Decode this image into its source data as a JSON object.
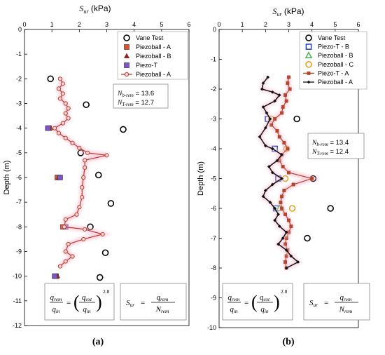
{
  "panels": [
    {
      "panel_label": "(a)",
      "chart_data": {
        "type": "scatter",
        "x_axis_label_main": "S",
        "x_axis_label_sub": "ur",
        "x_axis_label_unit": " (kPa)",
        "y_axis_label": "Depth (m)",
        "xlim": [
          0,
          6
        ],
        "ylim": [
          -12,
          0
        ],
        "x_ticks": [
          0,
          1,
          2,
          3,
          4,
          5,
          6
        ],
        "y_ticks": [
          0,
          -1,
          -2,
          -3,
          -4,
          -5,
          -6,
          -7,
          -8,
          -9,
          -10,
          -11,
          -12
        ],
        "grid": false,
        "legend_position": "top-right",
        "series": [
          {
            "name": "Vane Test",
            "marker": "circle-open",
            "color": "#000000",
            "points": [
              [
                0.95,
                -2.0
              ],
              [
                2.25,
                -3.05
              ],
              [
                3.6,
                -4.05
              ],
              [
                2.05,
                -5.0
              ],
              [
                2.7,
                -5.9
              ],
              [
                3.15,
                -7.05
              ],
              [
                2.4,
                -8.0
              ],
              [
                2.95,
                -9.05
              ],
              [
                2.75,
                -10.05
              ]
            ]
          },
          {
            "name": "Piezoball - A",
            "marker": "square-filled",
            "color": "#d9542b",
            "points": [
              [
                0.9,
                -4.0
              ],
              [
                1.2,
                -6.0
              ],
              [
                1.4,
                -8.0
              ],
              [
                1.15,
                -10.0
              ]
            ]
          },
          {
            "name": "Piezoball - B",
            "marker": "triangle-filled",
            "color": "#8b2a1c",
            "points": [
              [
                0.95,
                -4.0
              ],
              [
                1.25,
                -6.0
              ],
              [
                1.45,
                -8.0
              ],
              [
                1.2,
                -10.0
              ]
            ]
          },
          {
            "name": "Piezo-T",
            "marker": "square-filled",
            "color": "#7b56c9",
            "points": [
              [
                0.85,
                -4.0
              ],
              [
                1.3,
                -6.0
              ],
              [
                1.5,
                -8.0
              ],
              [
                1.1,
                -10.0
              ]
            ]
          },
          {
            "name": "Piezoball - A",
            "marker": "circle-line",
            "color": "#c0392b",
            "points": [
              [
                1.3,
                -2.0
              ],
              [
                1.4,
                -2.2
              ],
              [
                1.25,
                -2.4
              ],
              [
                1.4,
                -2.6
              ],
              [
                1.3,
                -2.8
              ],
              [
                1.5,
                -3.0
              ],
              [
                1.6,
                -3.2
              ],
              [
                1.5,
                -3.4
              ],
              [
                1.6,
                -3.6
              ],
              [
                1.4,
                -3.8
              ],
              [
                1.1,
                -4.0
              ],
              [
                1.25,
                -4.2
              ],
              [
                1.5,
                -4.4
              ],
              [
                1.75,
                -4.6
              ],
              [
                2.0,
                -4.8
              ],
              [
                2.3,
                -5.0
              ],
              [
                3.0,
                -5.1
              ],
              [
                2.2,
                -5.3
              ],
              [
                2.2,
                -5.6
              ],
              [
                2.15,
                -6.0
              ],
              [
                2.1,
                -6.4
              ],
              [
                2.1,
                -6.8
              ],
              [
                2.0,
                -7.2
              ],
              [
                1.9,
                -7.5
              ],
              [
                1.5,
                -7.7
              ],
              [
                1.45,
                -8.0
              ],
              [
                2.2,
                -8.1
              ],
              [
                2.85,
                -8.3
              ],
              [
                2.15,
                -8.5
              ],
              [
                1.6,
                -8.7
              ],
              [
                1.5,
                -9.0
              ],
              [
                1.75,
                -9.2
              ],
              [
                1.5,
                -9.4
              ],
              [
                1.3,
                -9.6
              ]
            ]
          }
        ],
        "annotations": {
          "n_values": [
            {
              "main": "N",
              "sub": "b-rem",
              "value": " = 13.6"
            },
            {
              "main": "N",
              "sub": "T-rem",
              "value": " = 12.7"
            }
          ]
        }
      }
    },
    {
      "panel_label": "(b)",
      "chart_data": {
        "type": "scatter",
        "x_axis_label_main": "S",
        "x_axis_label_sub": "ur",
        "x_axis_label_unit": " (kPa)",
        "y_axis_label": "Depth (m)",
        "xlim": [
          0,
          6
        ],
        "ylim": [
          -10,
          0
        ],
        "x_ticks": [
          0,
          1,
          2,
          3,
          4,
          5,
          6
        ],
        "y_ticks": [
          0,
          -1,
          -2,
          -3,
          -4,
          -5,
          -6,
          -7,
          -8,
          -9,
          -10
        ],
        "grid": false,
        "legend_position": "top-right",
        "series": [
          {
            "name": "Vane Test",
            "marker": "circle-open",
            "color": "#000000",
            "points": [
              [
                3.35,
                -3.0
              ],
              [
                4.05,
                -5.0
              ],
              [
                4.8,
                -6.0
              ],
              [
                3.8,
                -7.0
              ]
            ]
          },
          {
            "name": "Piezo-T - B",
            "marker": "square-open",
            "color": "#1f3fbf",
            "points": [
              [
                2.1,
                -3.0
              ],
              [
                2.4,
                -4.0
              ],
              [
                2.55,
                -5.0
              ],
              [
                2.45,
                -6.0
              ]
            ]
          },
          {
            "name": "Piezoball - B",
            "marker": "triangle-open",
            "color": "#4caf50",
            "points": [
              [
                2.6,
                -6.0
              ]
            ]
          },
          {
            "name": "Piezoball - C",
            "marker": "circle-open",
            "color": "#e0a020",
            "points": [
              [
                2.25,
                -3.0
              ],
              [
                2.9,
                -4.0
              ],
              [
                2.85,
                -5.0
              ],
              [
                3.15,
                -6.0
              ]
            ]
          },
          {
            "name": "Piezo-T - A",
            "marker": "square-line",
            "color": "#b5452b",
            "points": [
              [
                3.0,
                -1.6
              ],
              [
                2.95,
                -1.8
              ],
              [
                3.05,
                -2.0
              ],
              [
                2.85,
                -2.2
              ],
              [
                2.9,
                -2.4
              ],
              [
                2.75,
                -2.6
              ],
              [
                2.7,
                -2.8
              ],
              [
                2.4,
                -3.0
              ],
              [
                2.25,
                -3.2
              ],
              [
                2.5,
                -3.4
              ],
              [
                2.6,
                -3.6
              ],
              [
                2.8,
                -3.8
              ],
              [
                2.95,
                -4.0
              ],
              [
                2.7,
                -4.2
              ],
              [
                2.6,
                -4.4
              ],
              [
                2.75,
                -4.6
              ],
              [
                3.0,
                -4.8
              ],
              [
                4.0,
                -5.0
              ],
              [
                3.2,
                -5.2
              ],
              [
                2.8,
                -5.4
              ],
              [
                2.7,
                -5.6
              ],
              [
                2.65,
                -5.8
              ],
              [
                2.7,
                -6.0
              ],
              [
                2.85,
                -6.2
              ],
              [
                3.0,
                -6.4
              ],
              [
                3.1,
                -6.6
              ],
              [
                3.0,
                -6.8
              ],
              [
                2.9,
                -7.0
              ],
              [
                2.85,
                -7.2
              ],
              [
                2.95,
                -7.4
              ],
              [
                2.9,
                -7.6
              ],
              [
                2.85,
                -7.8
              ],
              [
                2.9,
                -8.0
              ]
            ]
          },
          {
            "name": "Piezoball - A",
            "marker": "diamond-line",
            "color": "#111111",
            "points": [
              [
                2.1,
                -1.6
              ],
              [
                1.9,
                -1.8
              ],
              [
                1.85,
                -2.0
              ],
              [
                2.3,
                -2.1
              ],
              [
                2.6,
                -2.2
              ],
              [
                2.4,
                -2.4
              ],
              [
                1.9,
                -2.6
              ],
              [
                2.05,
                -2.8
              ],
              [
                2.2,
                -3.0
              ],
              [
                2.0,
                -3.3
              ],
              [
                1.75,
                -3.6
              ],
              [
                2.0,
                -3.9
              ],
              [
                2.3,
                -4.0
              ],
              [
                2.7,
                -4.2
              ],
              [
                2.5,
                -4.4
              ],
              [
                2.15,
                -4.6
              ],
              [
                2.3,
                -4.8
              ],
              [
                2.7,
                -5.0
              ],
              [
                2.3,
                -5.2
              ],
              [
                2.0,
                -5.4
              ],
              [
                1.9,
                -5.6
              ],
              [
                2.2,
                -5.8
              ],
              [
                2.4,
                -6.0
              ],
              [
                2.55,
                -6.2
              ],
              [
                2.4,
                -6.4
              ],
              [
                2.6,
                -6.6
              ],
              [
                2.9,
                -6.8
              ],
              [
                2.75,
                -7.0
              ],
              [
                2.55,
                -7.2
              ],
              [
                2.9,
                -7.4
              ],
              [
                3.1,
                -7.6
              ],
              [
                3.4,
                -7.8
              ],
              [
                2.9,
                -8.0
              ]
            ]
          }
        ],
        "annotations": {
          "n_values": [
            {
              "main": "N",
              "sub": "b-rem",
              "value": " = 13.4"
            },
            {
              "main": "N",
              "sub": "T-rem",
              "value": " = 12.4"
            }
          ]
        }
      }
    }
  ],
  "formula_text": {
    "q": "q",
    "rem": "rem",
    "in": "in",
    "ext": "ext",
    "exponent": "2.8",
    "S": "S",
    "ur": "ur",
    "N": "N",
    "eq": "=",
    "lparen": "(",
    "rparen": ")"
  }
}
